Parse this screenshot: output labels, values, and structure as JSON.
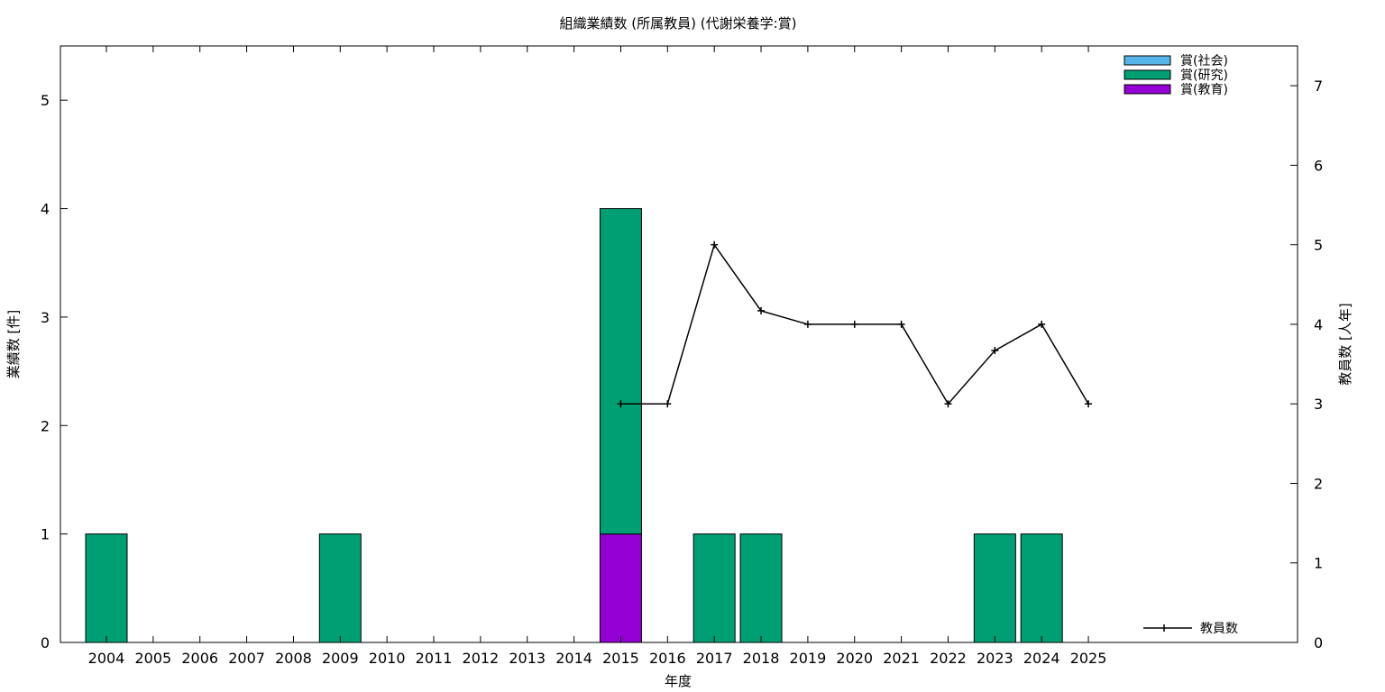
{
  "chart_data": {
    "type": "bar",
    "title": "組織業績数 (所属教員) (代謝栄養学:賞)",
    "xlabel": "年度",
    "ylabel": "業績数 [件]",
    "y2label": "教員数 [人年]",
    "categories": [
      "2004",
      "2005",
      "2006",
      "2007",
      "2008",
      "2009",
      "2010",
      "2011",
      "2012",
      "2013",
      "2014",
      "2015",
      "2016",
      "2017",
      "2018",
      "2019",
      "2020",
      "2021",
      "2022",
      "2023",
      "2024",
      "2025"
    ],
    "ylim": [
      0,
      5.5
    ],
    "y2lim": [
      0,
      7.5
    ],
    "yticks": [
      0,
      1,
      2,
      3,
      4,
      5
    ],
    "y2ticks": [
      0,
      1,
      2,
      3,
      4,
      5,
      6,
      7
    ],
    "stacked": true,
    "series": [
      {
        "name": "賞(教育)",
        "color": "#9400d3",
        "values": [
          0,
          0,
          0,
          0,
          0,
          0,
          0,
          0,
          0,
          0,
          0,
          1,
          0,
          0,
          0,
          0,
          0,
          0,
          0,
          0,
          0,
          0
        ]
      },
      {
        "name": "賞(研究)",
        "color": "#009e73",
        "values": [
          1,
          0,
          0,
          0,
          0,
          1,
          0,
          0,
          0,
          0,
          0,
          3,
          0,
          1,
          1,
          0,
          0,
          0,
          0,
          1,
          1,
          0
        ]
      },
      {
        "name": "賞(社会)",
        "color": "#56b4e9",
        "values": [
          0,
          0,
          0,
          0,
          0,
          0,
          0,
          0,
          0,
          0,
          0,
          0,
          0,
          0,
          0,
          0,
          0,
          0,
          0,
          0,
          0,
          0
        ]
      }
    ],
    "line_series": {
      "name": "教員数",
      "axis": "y2",
      "color": "#000000",
      "x": [
        "2015",
        "2016",
        "2017",
        "2018",
        "2019",
        "2020",
        "2021",
        "2022",
        "2023",
        "2024",
        "2025"
      ],
      "values": [
        3,
        3,
        5,
        4.17,
        4,
        4,
        4,
        3,
        3.67,
        4,
        3
      ]
    },
    "legend_order": [
      "賞(社会)",
      "賞(研究)",
      "賞(教育)"
    ],
    "legend_position": "top-right",
    "line_legend_position": "bottom-right",
    "grid": false
  }
}
